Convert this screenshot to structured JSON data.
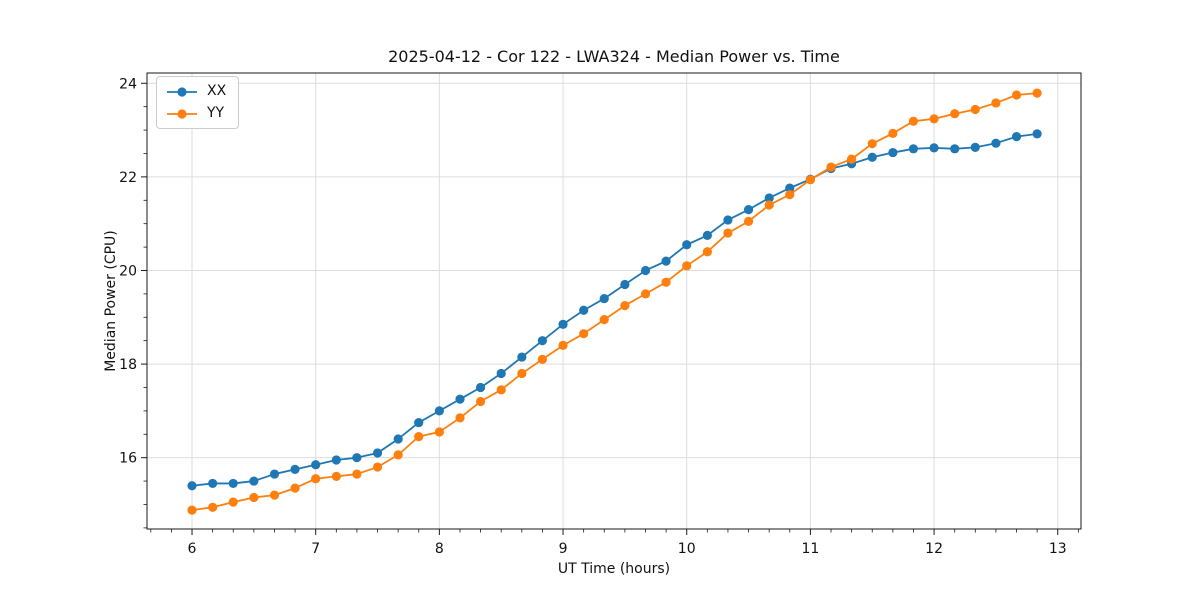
{
  "chart_data": {
    "type": "line",
    "title": "2025-04-12 - Cor 122 - LWA324 - Median Power vs. Time",
    "xlabel": "UT Time (hours)",
    "ylabel": "Median Power (CPU)",
    "xlim": [
      5.636,
      13.188
    ],
    "ylim": [
      14.476,
      24.22
    ],
    "x_major_ticks": [
      6,
      7,
      8,
      9,
      10,
      11,
      12,
      13
    ],
    "y_major_ticks": [
      16,
      18,
      20,
      22,
      24
    ],
    "x_minor_step": 0.166667,
    "y_minor_step": 0.5,
    "grid": true,
    "legend_position": "upper left",
    "colors": {
      "xx": "#1f77b4",
      "yy": "#ff7f0e",
      "grid": "#dddddd",
      "spine": "#1a1a1a"
    },
    "x": [
      6.0,
      6.167,
      6.333,
      6.5,
      6.667,
      6.833,
      7.0,
      7.167,
      7.333,
      7.5,
      7.667,
      7.833,
      8.0,
      8.167,
      8.333,
      8.5,
      8.667,
      8.833,
      9.0,
      9.167,
      9.333,
      9.5,
      9.667,
      9.833,
      10.0,
      10.167,
      10.333,
      10.5,
      10.667,
      10.833,
      11.0,
      11.167,
      11.333,
      11.5,
      11.667,
      11.833,
      12.0,
      12.167,
      12.333,
      12.5,
      12.667,
      12.833
    ],
    "series": [
      {
        "name": "XX",
        "color": "#1f77b4",
        "values": [
          15.4,
          15.45,
          15.45,
          15.5,
          15.65,
          15.75,
          15.85,
          15.95,
          16.0,
          16.1,
          16.4,
          16.75,
          17.0,
          17.25,
          17.5,
          17.8,
          18.15,
          18.5,
          18.85,
          19.15,
          19.4,
          19.7,
          20.0,
          20.2,
          20.55,
          20.75,
          21.08,
          21.3,
          21.55,
          21.76,
          21.95,
          22.18,
          22.28,
          22.42,
          22.52,
          22.6,
          22.62,
          22.6,
          22.63,
          22.72,
          22.86,
          22.92
        ]
      },
      {
        "name": "YY",
        "color": "#ff7f0e",
        "values": [
          14.88,
          14.94,
          15.05,
          15.15,
          15.2,
          15.35,
          15.55,
          15.6,
          15.65,
          15.8,
          16.06,
          16.45,
          16.55,
          16.85,
          17.2,
          17.45,
          17.8,
          18.1,
          18.4,
          18.65,
          18.95,
          19.25,
          19.5,
          19.75,
          20.1,
          20.4,
          20.8,
          21.05,
          21.4,
          21.62,
          21.94,
          22.21,
          22.38,
          22.71,
          22.93,
          23.19,
          23.24,
          23.35,
          23.44,
          23.58,
          23.75,
          23.79
        ]
      }
    ]
  }
}
